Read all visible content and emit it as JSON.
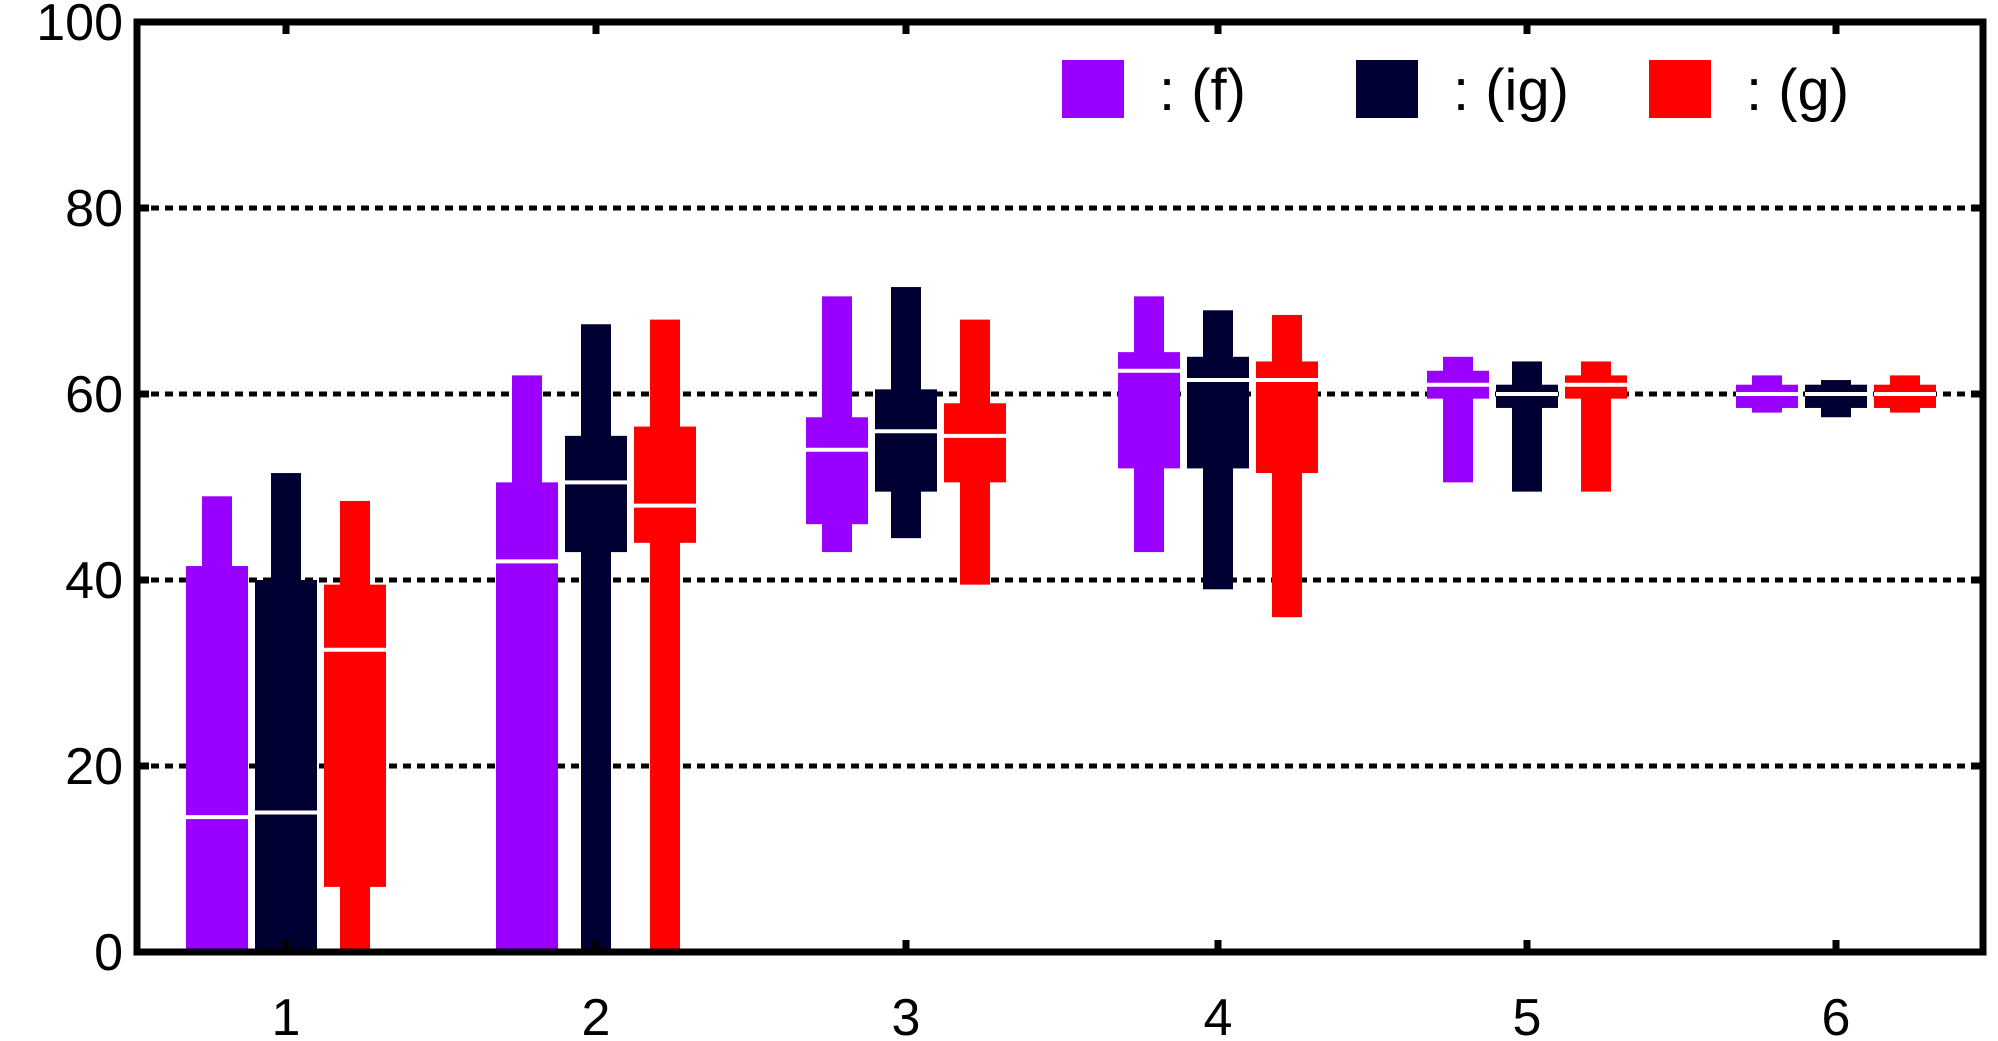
{
  "chart_data": {
    "type": "box",
    "categories": [
      "1",
      "2",
      "3",
      "4",
      "5",
      "6"
    ],
    "ylim": [
      0,
      100
    ],
    "yticks": [
      "0",
      "20",
      "40",
      "60",
      "80",
      "100"
    ],
    "grid": "horizontal dashed at y ticks",
    "legend": "top-right",
    "series": [
      {
        "name": ": (f)",
        "color": "#9900ff",
        "boxes": [
          {
            "whisker_low": 0,
            "q1": 0,
            "median": 14.5,
            "q3": 41.5,
            "whisker_high": 49
          },
          {
            "whisker_low": 0,
            "q1": 0,
            "median": 42,
            "q3": 50.5,
            "whisker_high": 62
          },
          {
            "whisker_low": 43,
            "q1": 46,
            "median": 54,
            "q3": 57.5,
            "whisker_high": 70.5
          },
          {
            "whisker_low": 43,
            "q1": 52,
            "median": 62.5,
            "q3": 64.5,
            "whisker_high": 70.5
          },
          {
            "whisker_low": 50.5,
            "q1": 59.5,
            "median": 61,
            "q3": 62.5,
            "whisker_high": 64
          },
          {
            "whisker_low": 58,
            "q1": 58.5,
            "median": 60,
            "q3": 61,
            "whisker_high": 62
          }
        ]
      },
      {
        "name": ": (ig)",
        "color": "#000033",
        "boxes": [
          {
            "whisker_low": 0,
            "q1": 0,
            "median": 15,
            "q3": 40,
            "whisker_high": 51.5
          },
          {
            "whisker_low": 0,
            "q1": 43,
            "median": 50.5,
            "q3": 55.5,
            "whisker_high": 67.5
          },
          {
            "whisker_low": 44.5,
            "q1": 49.5,
            "median": 56,
            "q3": 60.5,
            "whisker_high": 71.5
          },
          {
            "whisker_low": 39,
            "q1": 52,
            "median": 61.5,
            "q3": 64,
            "whisker_high": 69
          },
          {
            "whisker_low": 49.5,
            "q1": 58.5,
            "median": 60,
            "q3": 61,
            "whisker_high": 63.5
          },
          {
            "whisker_low": 57.5,
            "q1": 58.5,
            "median": 60,
            "q3": 61,
            "whisker_high": 61.5
          }
        ]
      },
      {
        "name": ": (g)",
        "color": "#ff0000",
        "boxes": [
          {
            "whisker_low": 0,
            "q1": 7,
            "median": 32.5,
            "q3": 39.5,
            "whisker_high": 48.5
          },
          {
            "whisker_low": 0,
            "q1": 44,
            "median": 48,
            "q3": 56.5,
            "whisker_high": 68
          },
          {
            "whisker_low": 39.5,
            "q1": 50.5,
            "median": 55.5,
            "q3": 59,
            "whisker_high": 68
          },
          {
            "whisker_low": 36,
            "q1": 51.5,
            "median": 61.5,
            "q3": 63.5,
            "whisker_high": 68.5
          },
          {
            "whisker_low": 49.5,
            "q1": 59.5,
            "median": 61,
            "q3": 62,
            "whisker_high": 63.5
          },
          {
            "whisker_low": 58,
            "q1": 58.5,
            "median": 60,
            "q3": 61,
            "whisker_high": 62
          }
        ]
      }
    ]
  }
}
